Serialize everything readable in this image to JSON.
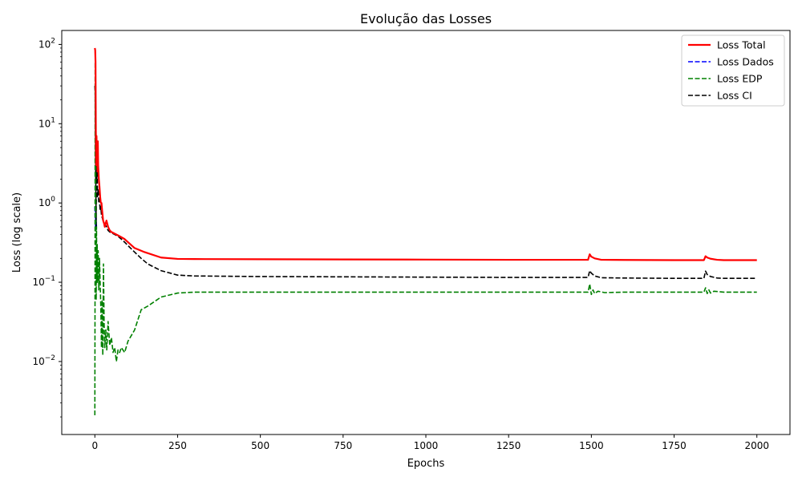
{
  "chart_data": {
    "type": "line",
    "title": "Evolução das Losses",
    "xlabel": "Epochs",
    "ylabel": "Loss (log scale)",
    "xlim": [
      -100,
      2100
    ],
    "ylim": [
      0.0012,
      150
    ],
    "yscale": "log",
    "grid": false,
    "legend_position": "top-right",
    "x_ticks": [
      0,
      250,
      500,
      750,
      1000,
      1250,
      1500,
      1750,
      2000
    ],
    "x_tick_labels": [
      "0",
      "250",
      "500",
      "750",
      "1000",
      "1250",
      "1500",
      "1750",
      "2000"
    ],
    "y_ticks": [
      0.01,
      0.1,
      1,
      10,
      100
    ],
    "y_tick_labels": [
      {
        "base": "10",
        "exp": "−2"
      },
      {
        "base": "10",
        "exp": "−1"
      },
      {
        "base": "10",
        "exp": "0"
      },
      {
        "base": "10",
        "exp": "1"
      },
      {
        "base": "10",
        "exp": "2"
      }
    ],
    "series": [
      {
        "name": "Loss Total",
        "color": "#ff0000",
        "style": "solid",
        "x": [
          0,
          1,
          2,
          3,
          4,
          5,
          6,
          7,
          8,
          9,
          10,
          12,
          14,
          16,
          18,
          20,
          22,
          25,
          28,
          30,
          35,
          40,
          45,
          50,
          60,
          70,
          80,
          90,
          100,
          120,
          150,
          200,
          250,
          300,
          500,
          750,
          1000,
          1250,
          1490,
          1495,
          1500,
          1510,
          1530,
          1600,
          1750,
          1840,
          1845,
          1850,
          1860,
          1880,
          1900,
          2000
        ],
        "y": [
          90,
          85,
          60,
          8,
          3,
          7,
          4,
          5,
          2.5,
          6,
          3,
          2,
          1.6,
          1.2,
          1.0,
          1.0,
          0.8,
          0.6,
          0.55,
          0.5,
          0.6,
          0.5,
          0.45,
          0.43,
          0.41,
          0.39,
          0.37,
          0.35,
          0.32,
          0.27,
          0.24,
          0.205,
          0.197,
          0.196,
          0.195,
          0.194,
          0.193,
          0.192,
          0.192,
          0.225,
          0.21,
          0.2,
          0.192,
          0.191,
          0.19,
          0.19,
          0.213,
          0.205,
          0.198,
          0.192,
          0.19,
          0.19
        ]
      },
      {
        "name": "Loss Dados",
        "color": "#0000ff",
        "style": "dashed",
        "x": [
          0,
          1,
          2,
          3,
          4,
          5
        ],
        "y": [
          0.9,
          0.7,
          0.5,
          0.8,
          0.6,
          0.5
        ]
      },
      {
        "name": "Loss EDP",
        "color": "#008000",
        "style": "dashed",
        "x": [
          0,
          0.5,
          1,
          2,
          3,
          4,
          5,
          6,
          7,
          8,
          10,
          12,
          14,
          16,
          18,
          20,
          22,
          24,
          26,
          28,
          30,
          33,
          36,
          40,
          45,
          50,
          55,
          60,
          65,
          70,
          75,
          80,
          90,
          100,
          120,
          140,
          160,
          200,
          250,
          300,
          500,
          750,
          1000,
          1250,
          1490,
          1495,
          1500,
          1505,
          1510,
          1520,
          1540,
          1600,
          1750,
          1840,
          1845,
          1850,
          1855,
          1860,
          1870,
          1900,
          2000
        ],
        "y": [
          0.0021,
          0.05,
          60,
          8,
          0.3,
          0.06,
          0.5,
          0.1,
          0.3,
          0.1,
          0.25,
          0.08,
          0.2,
          0.1,
          0.05,
          0.015,
          0.06,
          0.012,
          0.17,
          0.03,
          0.015,
          0.025,
          0.014,
          0.032,
          0.016,
          0.02,
          0.013,
          0.015,
          0.01,
          0.014,
          0.013,
          0.015,
          0.013,
          0.018,
          0.025,
          0.045,
          0.05,
          0.065,
          0.073,
          0.075,
          0.075,
          0.075,
          0.075,
          0.075,
          0.075,
          0.095,
          0.07,
          0.08,
          0.072,
          0.077,
          0.074,
          0.075,
          0.075,
          0.075,
          0.085,
          0.072,
          0.08,
          0.073,
          0.077,
          0.075,
          0.075
        ]
      },
      {
        "name": "Loss CI",
        "color": "#000000",
        "style": "dashed",
        "x": [
          0,
          1,
          2,
          3,
          4,
          5,
          6,
          7,
          8,
          10,
          12,
          14,
          16,
          18,
          20,
          25,
          30,
          35,
          40,
          45,
          50,
          60,
          70,
          80,
          90,
          100,
          120,
          140,
          160,
          200,
          250,
          300,
          500,
          750,
          1000,
          1250,
          1490,
          1495,
          1500,
          1510,
          1530,
          1600,
          1750,
          1840,
          1845,
          1850,
          1860,
          1880,
          1900,
          2000
        ],
        "y": [
          30,
          25,
          4,
          1.5,
          0.5,
          5,
          2,
          3,
          1.2,
          1.5,
          1.0,
          1.1,
          0.8,
          0.9,
          0.7,
          0.6,
          0.55,
          0.5,
          0.45,
          0.43,
          0.42,
          0.4,
          0.38,
          0.35,
          0.32,
          0.29,
          0.24,
          0.2,
          0.17,
          0.14,
          0.123,
          0.12,
          0.118,
          0.117,
          0.116,
          0.115,
          0.115,
          0.14,
          0.13,
          0.12,
          0.114,
          0.113,
          0.112,
          0.112,
          0.138,
          0.125,
          0.118,
          0.113,
          0.112,
          0.112
        ]
      }
    ]
  }
}
